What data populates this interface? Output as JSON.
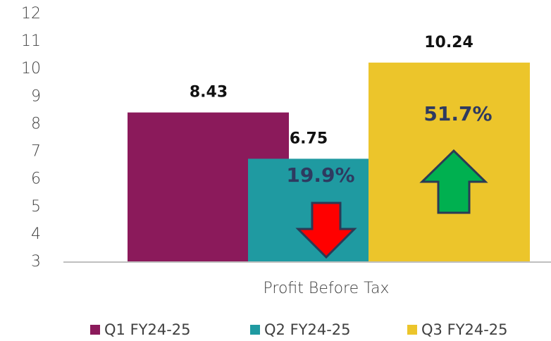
{
  "chart_data": {
    "type": "bar",
    "categories": [
      "Profit Before Tax"
    ],
    "series": [
      {
        "name": "Q1 FY24-25",
        "color": "#8b1a5b",
        "values": [
          8.43
        ]
      },
      {
        "name": "Q2 FY24-25",
        "color": "#1f9aa1",
        "values": [
          6.75
        ]
      },
      {
        "name": "Q3 FY24-25",
        "color": "#ecc52b",
        "values": [
          10.24
        ]
      }
    ],
    "annotations": [
      "19.9%",
      "51.7%"
    ],
    "ylim": [
      3,
      12
    ],
    "yticks": [
      3,
      4,
      5,
      6,
      7,
      8,
      9,
      10,
      11,
      12
    ],
    "legend": "bottom"
  }
}
